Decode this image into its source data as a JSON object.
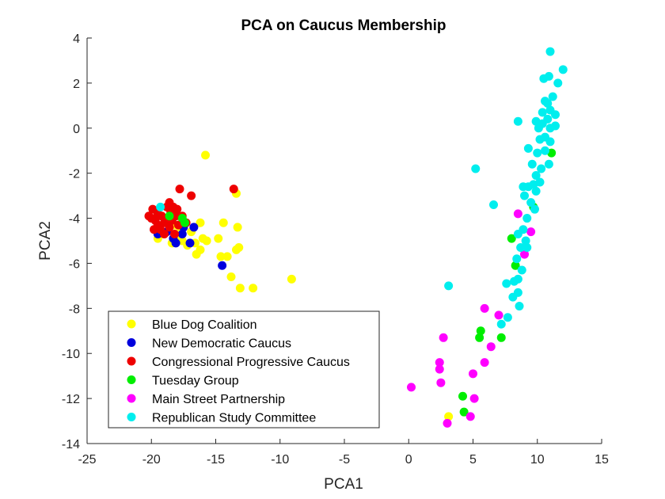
{
  "chart_data": {
    "type": "scatter",
    "title": "PCA on Caucus Membership",
    "xlabel": "PCA1",
    "ylabel": "PCA2",
    "xlim": [
      -25,
      15
    ],
    "ylim": [
      -14,
      4
    ],
    "xticks": [
      -25,
      -20,
      -15,
      -10,
      -5,
      0,
      5,
      10,
      15
    ],
    "yticks": [
      -14,
      -12,
      -10,
      -8,
      -6,
      -4,
      -2,
      0,
      2,
      4
    ],
    "grid": false,
    "legend_position": "bottom-left",
    "series": [
      {
        "name": "Blue Dog Coalition",
        "color": "#ffff00",
        "points": [
          [
            -15.8,
            -1.2
          ],
          [
            -13.4,
            -2.9
          ],
          [
            -14.4,
            -4.2
          ],
          [
            -13.3,
            -4.4
          ],
          [
            -14.8,
            -4.9
          ],
          [
            -16.2,
            -4.2
          ],
          [
            -16.0,
            -4.9
          ],
          [
            -15.7,
            -5.0
          ],
          [
            -16.5,
            -5.6
          ],
          [
            -16.2,
            -5.4
          ],
          [
            -16.6,
            -5.1
          ],
          [
            -17.2,
            -5.2
          ],
          [
            -17.6,
            -5.0
          ],
          [
            -18.0,
            -4.9
          ],
          [
            -18.4,
            -5.1
          ],
          [
            -19.0,
            -4.7
          ],
          [
            -19.5,
            -4.9
          ],
          [
            -17.8,
            -4.4
          ],
          [
            -18.2,
            -4.3
          ],
          [
            -16.9,
            -4.6
          ],
          [
            -14.6,
            -5.7
          ],
          [
            -14.1,
            -5.7
          ],
          [
            -13.2,
            -5.3
          ],
          [
            -13.4,
            -5.4
          ],
          [
            -13.8,
            -6.6
          ],
          [
            -13.1,
            -7.1
          ],
          [
            -12.1,
            -7.1
          ],
          [
            -9.1,
            -6.7
          ],
          [
            3.1,
            -12.8
          ]
        ]
      },
      {
        "name": "New Democratic Caucus",
        "color": "#0000dd",
        "points": [
          [
            -19.5,
            -4.7
          ],
          [
            -18.8,
            -4.6
          ],
          [
            -18.3,
            -4.9
          ],
          [
            -18.1,
            -5.1
          ],
          [
            -17.6,
            -4.7
          ],
          [
            -17.5,
            -4.4
          ],
          [
            -17.0,
            -5.1
          ],
          [
            -16.7,
            -4.4
          ],
          [
            -14.5,
            -6.1
          ]
        ]
      },
      {
        "name": "Congressional Progressive Caucus",
        "color": "#ee0000",
        "points": [
          [
            -20.2,
            -3.9
          ],
          [
            -20.0,
            -4.0
          ],
          [
            -19.9,
            -3.6
          ],
          [
            -19.7,
            -4.1
          ],
          [
            -19.5,
            -3.8
          ],
          [
            -19.5,
            -4.3
          ],
          [
            -19.3,
            -4.5
          ],
          [
            -19.2,
            -3.9
          ],
          [
            -19.0,
            -4.2
          ],
          [
            -19.0,
            -4.7
          ],
          [
            -18.8,
            -3.5
          ],
          [
            -18.7,
            -4.0
          ],
          [
            -18.6,
            -4.4
          ],
          [
            -18.5,
            -3.7
          ],
          [
            -18.4,
            -4.1
          ],
          [
            -18.3,
            -3.5
          ],
          [
            -18.2,
            -4.7
          ],
          [
            -18.1,
            -3.9
          ],
          [
            -18.0,
            -3.6
          ],
          [
            -17.9,
            -4.3
          ],
          [
            -17.8,
            -2.7
          ],
          [
            -17.6,
            -3.9
          ],
          [
            -17.3,
            -4.2
          ],
          [
            -16.9,
            -3.0
          ],
          [
            -13.6,
            -2.7
          ],
          [
            -19.8,
            -4.5
          ],
          [
            -18.6,
            -3.3
          ]
        ]
      },
      {
        "name": "Tuesday Group",
        "color": "#00ee00",
        "points": [
          [
            -18.6,
            -3.9
          ],
          [
            -17.6,
            -4.0
          ],
          [
            -17.4,
            -4.2
          ],
          [
            8.0,
            -4.9
          ],
          [
            8.3,
            -6.1
          ],
          [
            9.7,
            -3.5
          ],
          [
            11.1,
            -1.1
          ],
          [
            5.6,
            -9.0
          ],
          [
            5.5,
            -9.3
          ],
          [
            7.2,
            -9.3
          ],
          [
            4.2,
            -11.9
          ],
          [
            4.3,
            -12.6
          ]
        ]
      },
      {
        "name": "Main Street Partnership",
        "color": "#ff00ff",
        "points": [
          [
            8.5,
            -3.8
          ],
          [
            9.0,
            -5.6
          ],
          [
            9.5,
            -4.6
          ],
          [
            5.9,
            -8.0
          ],
          [
            7.0,
            -8.3
          ],
          [
            2.7,
            -9.3
          ],
          [
            6.4,
            -9.7
          ],
          [
            2.4,
            -10.4
          ],
          [
            2.4,
            -10.7
          ],
          [
            5.9,
            -10.4
          ],
          [
            5.0,
            -10.9
          ],
          [
            2.5,
            -11.3
          ],
          [
            0.2,
            -11.5
          ],
          [
            5.1,
            -12.0
          ],
          [
            4.8,
            -12.8
          ],
          [
            3.0,
            -13.1
          ]
        ]
      },
      {
        "name": "Republican Study Committee",
        "color": "#00eeee",
        "points": [
          [
            -19.3,
            -3.5
          ],
          [
            5.2,
            -1.8
          ],
          [
            6.6,
            -3.4
          ],
          [
            3.1,
            -7.0
          ],
          [
            8.5,
            0.3
          ],
          [
            11.0,
            3.4
          ],
          [
            12.0,
            2.6
          ],
          [
            11.6,
            2.0
          ],
          [
            10.9,
            2.3
          ],
          [
            10.5,
            2.2
          ],
          [
            11.2,
            1.4
          ],
          [
            10.8,
            1.1
          ],
          [
            10.4,
            0.7
          ],
          [
            10.6,
            1.2
          ],
          [
            11.0,
            0.8
          ],
          [
            11.4,
            0.6
          ],
          [
            10.1,
            0.0
          ],
          [
            9.9,
            0.3
          ],
          [
            10.4,
            0.2
          ],
          [
            10.8,
            0.4
          ],
          [
            11.0,
            0.0
          ],
          [
            11.4,
            0.1
          ],
          [
            10.6,
            -0.4
          ],
          [
            10.2,
            -0.5
          ],
          [
            11.0,
            -0.6
          ],
          [
            9.3,
            -0.9
          ],
          [
            10.0,
            -1.1
          ],
          [
            10.6,
            -1.0
          ],
          [
            9.6,
            -1.6
          ],
          [
            10.9,
            -1.6
          ],
          [
            10.3,
            -1.8
          ],
          [
            9.9,
            -2.1
          ],
          [
            9.7,
            -2.5
          ],
          [
            10.2,
            -2.4
          ],
          [
            9.3,
            -2.6
          ],
          [
            8.9,
            -2.6
          ],
          [
            9.9,
            -2.8
          ],
          [
            9.0,
            -3.0
          ],
          [
            9.5,
            -3.3
          ],
          [
            9.8,
            -3.6
          ],
          [
            9.2,
            -4.0
          ],
          [
            8.9,
            -4.5
          ],
          [
            9.1,
            -5.0
          ],
          [
            8.5,
            -4.7
          ],
          [
            8.7,
            -5.3
          ],
          [
            9.2,
            -5.3
          ],
          [
            8.4,
            -5.8
          ],
          [
            8.8,
            -6.3
          ],
          [
            8.5,
            -6.7
          ],
          [
            8.2,
            -6.8
          ],
          [
            7.6,
            -6.9
          ],
          [
            8.5,
            -7.3
          ],
          [
            8.1,
            -7.5
          ],
          [
            8.6,
            -7.9
          ],
          [
            7.7,
            -8.4
          ],
          [
            7.2,
            -8.7
          ]
        ]
      }
    ]
  }
}
